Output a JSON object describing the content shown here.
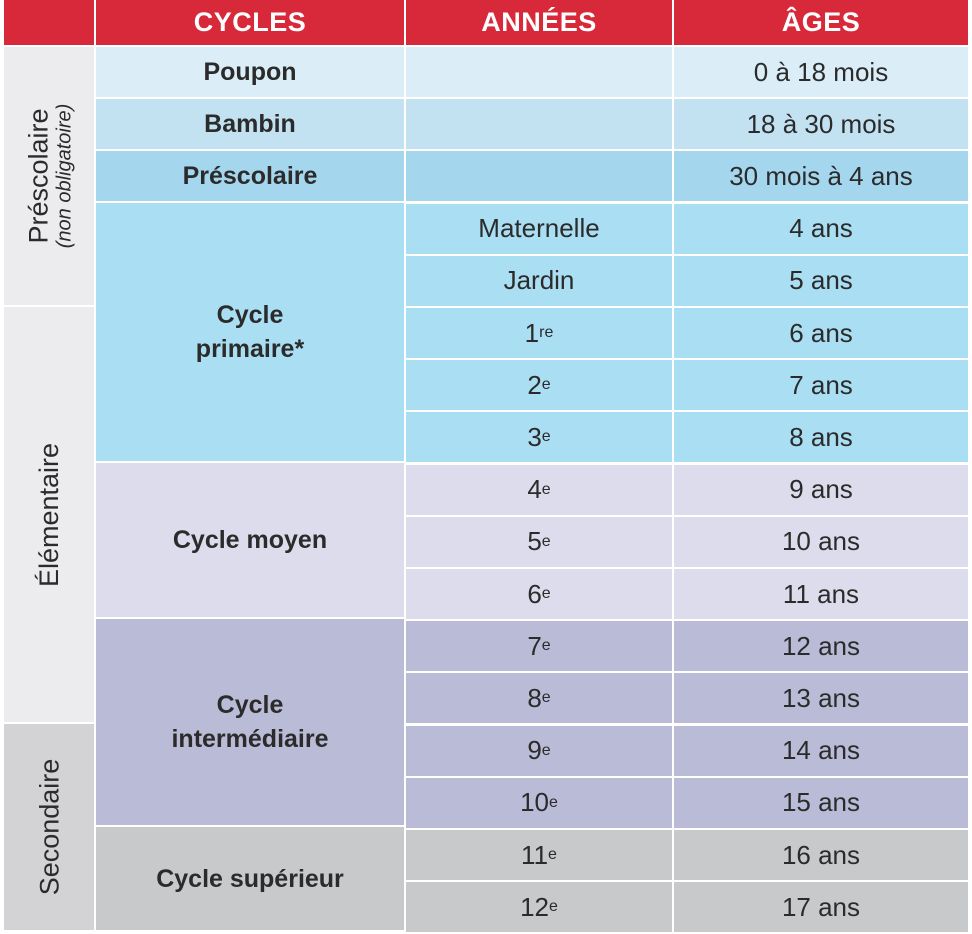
{
  "header": {
    "cycles": "CYCLES",
    "annees": "ANNÉES",
    "ages": "ÂGES"
  },
  "side_labels": {
    "prescolaire": "Préscolaire",
    "prescolaire_note": "(non obligatoire)",
    "elementaire": "Élémentaire",
    "secondaire": "Secondaire"
  },
  "cycles": {
    "poupon": "Poupon",
    "bambin": "Bambin",
    "prescolaire": "Préscolaire",
    "primaire_line1": "Cycle",
    "primaire_line2": "primaire*",
    "moyen": "Cycle moyen",
    "intermediaire_line1": "Cycle",
    "intermediaire_line2": "intermédiaire",
    "superieur": "Cycle supérieur"
  },
  "rows": [
    {
      "year": "",
      "sup": "",
      "age": "0 à 18 mois"
    },
    {
      "year": "",
      "sup": "",
      "age": "18 à 30 mois"
    },
    {
      "year": "",
      "sup": "",
      "age": "30 mois à 4 ans"
    },
    {
      "year": "Maternelle",
      "sup": "",
      "age": "4 ans"
    },
    {
      "year": "Jardin",
      "sup": "",
      "age": "5 ans"
    },
    {
      "year": "1",
      "sup": "re",
      "age": "6 ans"
    },
    {
      "year": "2",
      "sup": "e",
      "age": "7 ans"
    },
    {
      "year": "3",
      "sup": "e",
      "age": "8 ans"
    },
    {
      "year": "4",
      "sup": "e",
      "age": "9 ans"
    },
    {
      "year": "5",
      "sup": "e",
      "age": "10 ans"
    },
    {
      "year": "6",
      "sup": "e",
      "age": "11 ans"
    },
    {
      "year": "7",
      "sup": "e",
      "age": "12 ans"
    },
    {
      "year": "8",
      "sup": "e",
      "age": "13 ans"
    },
    {
      "year": "9",
      "sup": "e",
      "age": "14 ans"
    },
    {
      "year": "10",
      "sup": "e",
      "age": "15 ans"
    },
    {
      "year": "11",
      "sup": "e",
      "age": "16 ans"
    },
    {
      "year": "12",
      "sup": "e",
      "age": "17 ans"
    }
  ],
  "colors": {
    "header": "#d8293a",
    "poupon": "#dbeef8",
    "bambin": "#c2e2f2",
    "prescolaire": "#a4d6ee",
    "primaire": "#a9def3",
    "moyen": "#dcdcec",
    "intermediaire": "#babbd7",
    "superieur": "#c8c9cb",
    "side_light": "#ececee",
    "side_dark": "#d3d3d6"
  }
}
